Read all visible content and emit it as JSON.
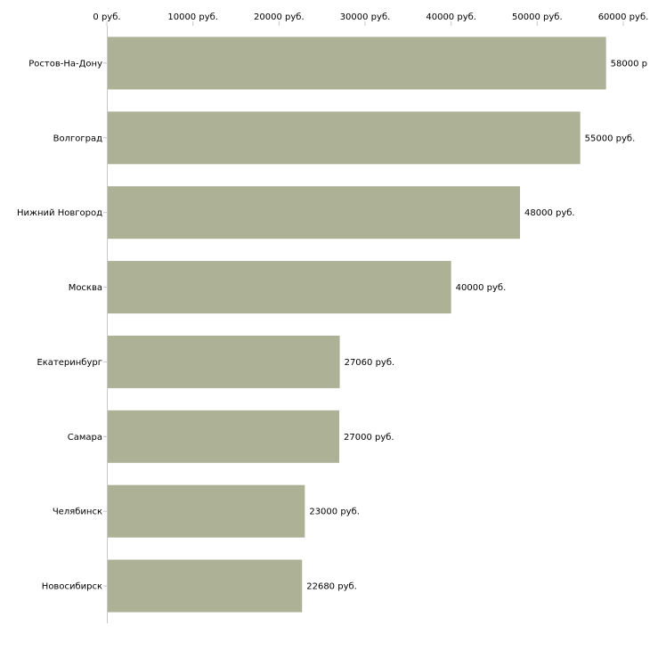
{
  "chart_data": {
    "type": "bar",
    "orientation": "horizontal",
    "categories": [
      "Ростов-На-Дону",
      "Волгоград",
      "Нижний Новгород",
      "Москва",
      "Екатеринбург",
      "Самара",
      "Челябинск",
      "Новосибирск"
    ],
    "values": [
      58000,
      55000,
      48000,
      40000,
      27060,
      27000,
      23000,
      22680
    ],
    "value_labels": [
      "58000 р",
      "55000 руб.",
      "48000 руб.",
      "40000 руб.",
      "27060 руб.",
      "27000 руб.",
      "23000 руб.",
      "22680 руб."
    ],
    "xlim": [
      0,
      60000
    ],
    "ticks": [
      0,
      10000,
      20000,
      30000,
      40000,
      50000,
      60000
    ],
    "tick_labels": [
      "0 руб.",
      "10000 руб.",
      "20000 руб.",
      "30000 руб.",
      "40000 руб.",
      "50000 руб.",
      "60000 руб."
    ],
    "axis_position": "top",
    "grid": false,
    "title": "",
    "xlabel": "",
    "ylabel": "",
    "bar_color": "#adb297",
    "axis_color": "#c8c8c8"
  }
}
